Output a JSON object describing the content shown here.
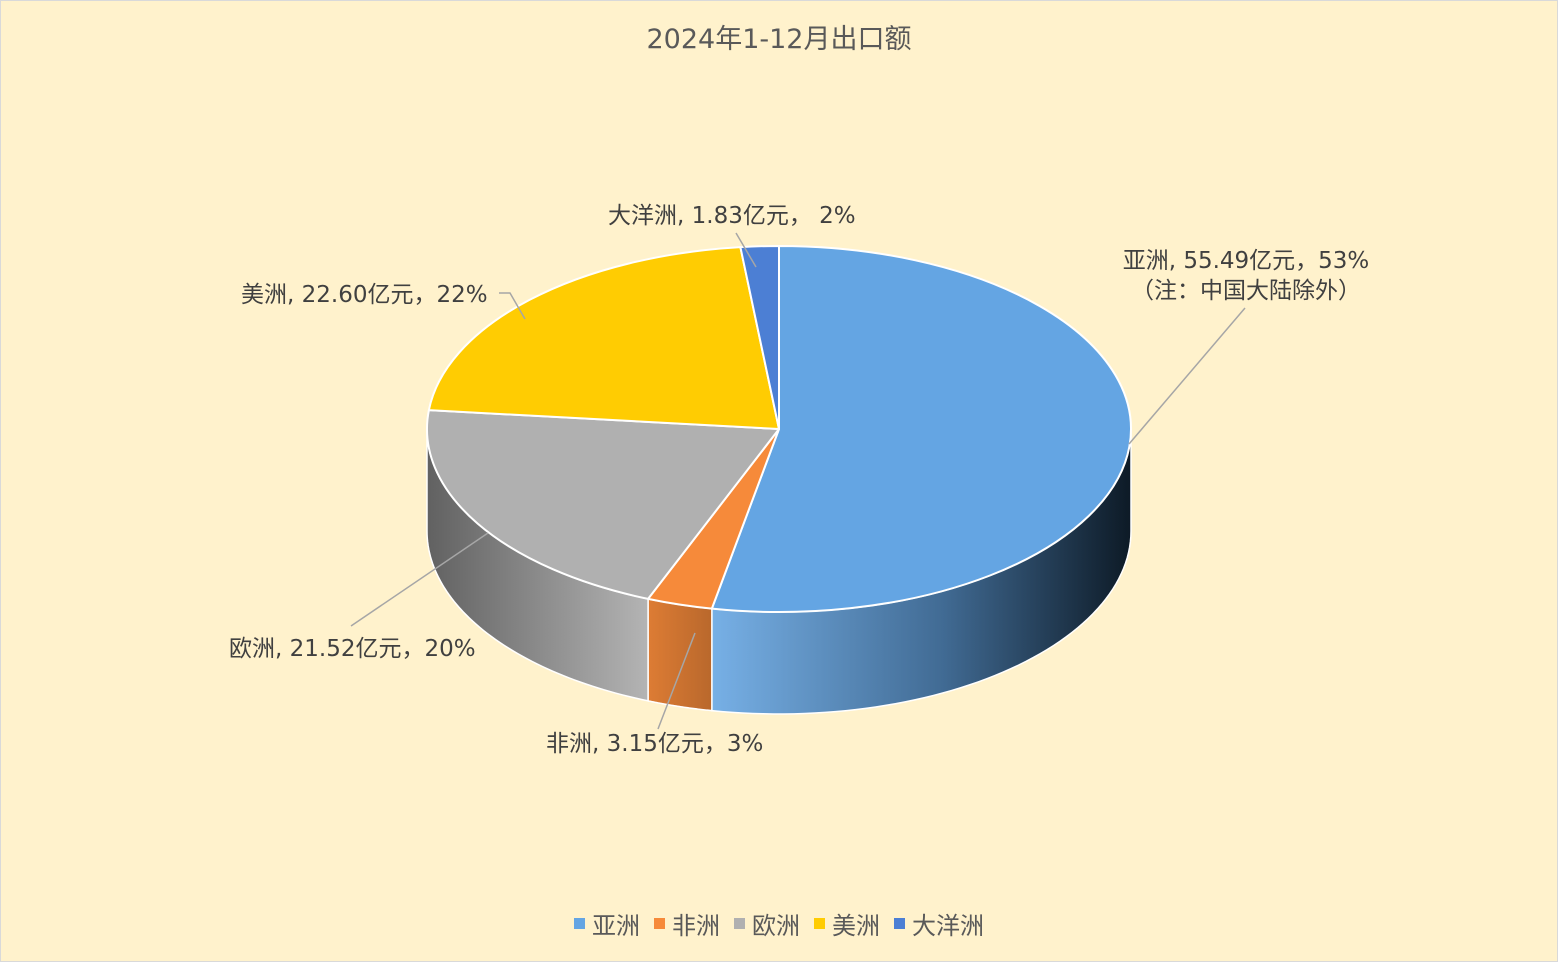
{
  "chart_data": {
    "type": "pie",
    "title": "2024年1-12月出口额",
    "unit": "亿元",
    "slices": [
      {
        "name": "亚洲",
        "value": 55.49,
        "percent": 53,
        "label": "亚洲, 55.49亿元，53%",
        "note": "（注：中国大陆除外）",
        "color": "#64a5e3"
      },
      {
        "name": "非洲",
        "value": 3.15,
        "percent": 3,
        "label": "非洲, 3.15亿元，3%",
        "color": "#f68a3a"
      },
      {
        "name": "欧洲",
        "value": 21.52,
        "percent": 20,
        "label": "欧洲, 21.52亿元，20%",
        "color": "#b0b0b0"
      },
      {
        "name": "美洲",
        "value": 22.6,
        "percent": 22,
        "label": "美洲, 22.60亿元，22%",
        "color": "#ffcc02"
      },
      {
        "name": "大洋洲",
        "value": 1.83,
        "percent": 2,
        "label": "大洋洲, 1.83亿元， 2%",
        "color": "#4c7fd4"
      }
    ],
    "legend_position": "bottom",
    "style": "3d"
  }
}
